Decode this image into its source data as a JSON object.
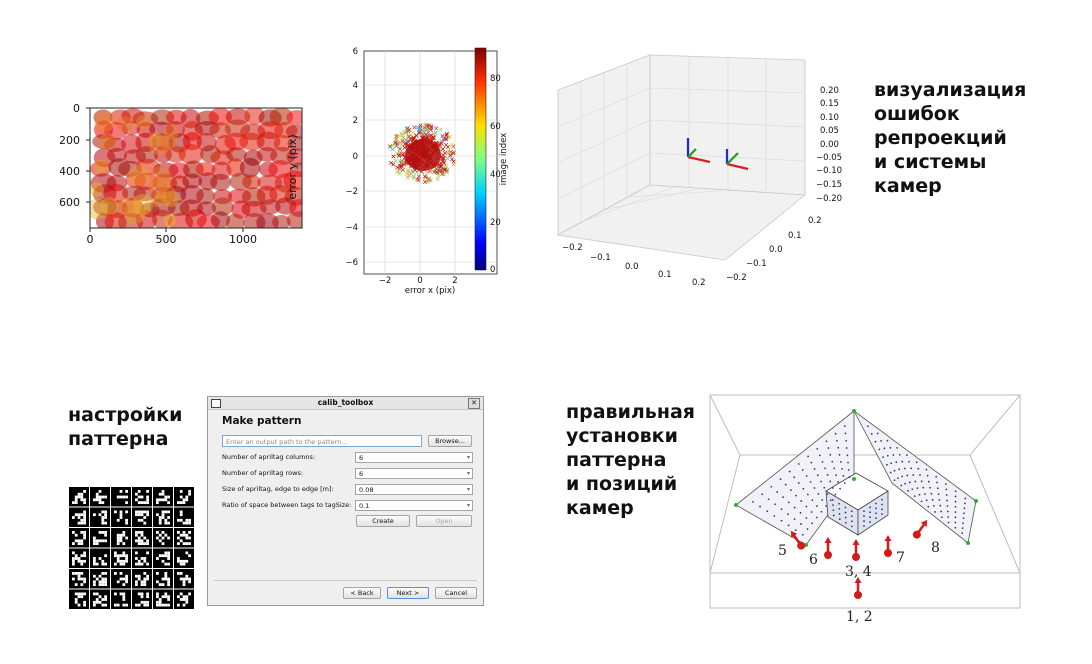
{
  "captions": {
    "reprojection": [
      "визуализация",
      "ошибок",
      "репроекций",
      "и системы",
      "камер"
    ],
    "pattern_settings": [
      "настройки",
      "паттерна"
    ],
    "placement": [
      "правильная",
      "установки",
      "паттерна",
      "и позиций",
      "камер"
    ]
  },
  "scatter_plot": {
    "x_ticks": [
      "0",
      "500",
      "1000"
    ],
    "y_ticks": [
      "0",
      "200",
      "400",
      "600"
    ],
    "ylabel": "error y (pix)"
  },
  "error_plot": {
    "x_ticks": [
      "−2",
      "0",
      "2"
    ],
    "y_ticks": [
      "6",
      "4",
      "2",
      "0",
      "−2",
      "−4",
      "−6"
    ],
    "xlabel": "error x (pix)",
    "colorbar_ticks": [
      "80",
      "60",
      "40",
      "20",
      "0"
    ],
    "colorbar_label": "image index"
  },
  "plot3d": {
    "z_ticks": [
      "0.20",
      "0.15",
      "0.10",
      "0.05",
      "0.00",
      "−0.05",
      "−0.10",
      "−0.15",
      "−0.20"
    ],
    "x_ticks": [
      "−0.2",
      "−0.1",
      "0.0",
      "0.1",
      "0.2"
    ],
    "y_ticks": [
      "0.2",
      "0.1",
      "0.0",
      "−0.1",
      "−0.2"
    ]
  },
  "dialog": {
    "title": "calib_toolbox",
    "heading": "Make pattern",
    "path_placeholder": "Enter an output path to the pattern...",
    "browse_label": "Browse...",
    "fields": [
      {
        "label": "Number of apriltag columns:",
        "value": "6"
      },
      {
        "label": "Number of apriltag rows:",
        "value": "6"
      },
      {
        "label": "Size of apriltag, edge to edge [m]:",
        "value": "0.08"
      },
      {
        "label": "Ratio of space between tags to tagSize:",
        "value": "0.1"
      }
    ],
    "create_label": "Create",
    "open_label": "Open",
    "back_label": "< Back",
    "next_label": "Next >",
    "cancel_label": "Cancel"
  },
  "camera_labels": [
    "5",
    "6",
    "3, 4",
    "7",
    "8",
    "1, 2"
  ],
  "colors": {
    "error_marker": "#c21a1a",
    "axis_x": "#d62020",
    "axis_y": "#1aa01a",
    "axis_z": "#1a2adb",
    "camera": "#d41a1a",
    "frame_edge": "#2bb52b"
  }
}
